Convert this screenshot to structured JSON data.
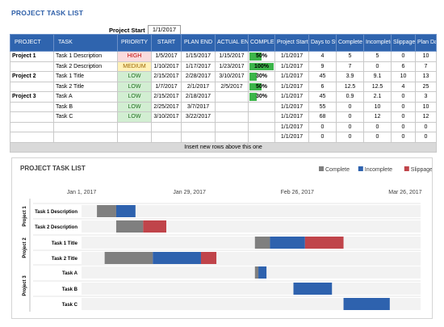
{
  "title": "PROJECT TASK LIST",
  "project_start": {
    "label": "Project Start",
    "value": "1/1/2017"
  },
  "table": {
    "headers": [
      "PROJECT",
      "TASK",
      "PRIORITY",
      "START",
      "PLAN END",
      "ACTUAL END",
      "COMPLE",
      "Project Start",
      "Days to Start",
      "Complete",
      "Incomplete",
      "Slippage",
      "Plan Days"
    ],
    "rows": [
      {
        "project": "Project 1",
        "task": "Task 1 Description",
        "priority": "HIGH",
        "start": "1/5/2017",
        "plan_end": "1/15/2017",
        "actual_end": "1/15/2017",
        "complete": "50%",
        "complete_pct": 50,
        "project_start": "1/1/2017",
        "days_to_start": "4",
        "c_complete": "5",
        "c_incomplete": "5",
        "slippage": "0",
        "plan_days": "10"
      },
      {
        "project": "",
        "task": "Task 2 Description",
        "priority": "MEDIUM",
        "start": "1/10/2017",
        "plan_end": "1/17/2017",
        "actual_end": "1/23/2017",
        "complete": "100%",
        "complete_pct": 100,
        "project_start": "1/1/2017",
        "days_to_start": "9",
        "c_complete": "7",
        "c_incomplete": "0",
        "slippage": "6",
        "plan_days": "7"
      },
      {
        "project": "Project 2",
        "task": "Task 1 Title",
        "priority": "LOW",
        "start": "2/15/2017",
        "plan_end": "2/28/2017",
        "actual_end": "3/10/2017",
        "complete": "30%",
        "complete_pct": 30,
        "project_start": "1/1/2017",
        "days_to_start": "45",
        "c_complete": "3.9",
        "c_incomplete": "9.1",
        "slippage": "10",
        "plan_days": "13"
      },
      {
        "project": "",
        "task": "Task 2 Title",
        "priority": "LOW",
        "start": "1/7/2017",
        "plan_end": "2/1/2017",
        "actual_end": "2/5/2017",
        "complete": "50%",
        "complete_pct": 50,
        "project_start": "1/1/2017",
        "days_to_start": "6",
        "c_complete": "12.5",
        "c_incomplete": "12.5",
        "slippage": "4",
        "plan_days": "25"
      },
      {
        "project": "Project 3",
        "task": "Task A",
        "priority": "LOW",
        "start": "2/15/2017",
        "plan_end": "2/18/2017",
        "actual_end": "",
        "complete": "30%",
        "complete_pct": 30,
        "project_start": "1/1/2017",
        "days_to_start": "45",
        "c_complete": "0.9",
        "c_incomplete": "2.1",
        "slippage": "0",
        "plan_days": "3"
      },
      {
        "project": "",
        "task": "Task B",
        "priority": "LOW",
        "start": "2/25/2017",
        "plan_end": "3/7/2017",
        "actual_end": "",
        "complete": "",
        "complete_pct": 0,
        "project_start": "1/1/2017",
        "days_to_start": "55",
        "c_complete": "0",
        "c_incomplete": "10",
        "slippage": "0",
        "plan_days": "10"
      },
      {
        "project": "",
        "task": "Task C",
        "priority": "LOW",
        "start": "3/10/2017",
        "plan_end": "3/22/2017",
        "actual_end": "",
        "complete": "",
        "complete_pct": 0,
        "project_start": "1/1/2017",
        "days_to_start": "68",
        "c_complete": "0",
        "c_incomplete": "12",
        "slippage": "0",
        "plan_days": "12"
      },
      {
        "project": "",
        "task": "",
        "priority": "",
        "start": "",
        "plan_end": "",
        "actual_end": "",
        "complete": "",
        "complete_pct": 0,
        "project_start": "1/1/2017",
        "days_to_start": "0",
        "c_complete": "0",
        "c_incomplete": "0",
        "slippage": "0",
        "plan_days": "0"
      },
      {
        "project": "",
        "task": "",
        "priority": "",
        "start": "",
        "plan_end": "",
        "actual_end": "",
        "complete": "",
        "complete_pct": 0,
        "project_start": "1/1/2017",
        "days_to_start": "0",
        "c_complete": "0",
        "c_incomplete": "0",
        "slippage": "0",
        "plan_days": "0"
      }
    ],
    "add_row_text": "Insert new rows above this one"
  },
  "colors": {
    "header": "#2f64ae",
    "complete": "#7f7f7f",
    "incomplete": "#2e62ae",
    "slippage": "#c0444a",
    "bar_bg": "#f2f2f2",
    "pct_fill": "#3cb54a"
  },
  "chart_data": {
    "type": "bar",
    "stacked": true,
    "orientation": "horizontal",
    "title": "PROJECT TASK LIST",
    "legend_position": "top-right",
    "x_ticks": [
      "Jan 1, 2017",
      "Jan 29, 2017",
      "Feb 26, 2017",
      "Mar 26, 2017"
    ],
    "x_tick_days": [
      0,
      28,
      56,
      84
    ],
    "xlim": [
      0,
      88
    ],
    "groups": [
      {
        "label": "Project 1",
        "tasks": [
          "Task 1 Description",
          "Task 2 Description"
        ]
      },
      {
        "label": "Project 2",
        "tasks": [
          "Task 1 Title",
          "Task 2 Title"
        ]
      },
      {
        "label": "Project 3",
        "tasks": [
          "Task A",
          "Task B",
          "Task C"
        ]
      }
    ],
    "categories": [
      "Task 1 Description",
      "Task 2 Description",
      "Task 1 Title",
      "Task 2 Title",
      "Task A",
      "Task B",
      "Task C"
    ],
    "offset": [
      4,
      9,
      45,
      6,
      45,
      55,
      68
    ],
    "series": [
      {
        "name": "Complete",
        "color": "#7f7f7f",
        "values": [
          5,
          7,
          3.9,
          12.5,
          0.9,
          0,
          0
        ]
      },
      {
        "name": "Incomplete",
        "color": "#2e62ae",
        "values": [
          5,
          0,
          9.1,
          12.5,
          2.1,
          10,
          12
        ]
      },
      {
        "name": "Slippage",
        "color": "#c0444a",
        "values": [
          0,
          6,
          10,
          4,
          0,
          0,
          0
        ]
      }
    ]
  }
}
